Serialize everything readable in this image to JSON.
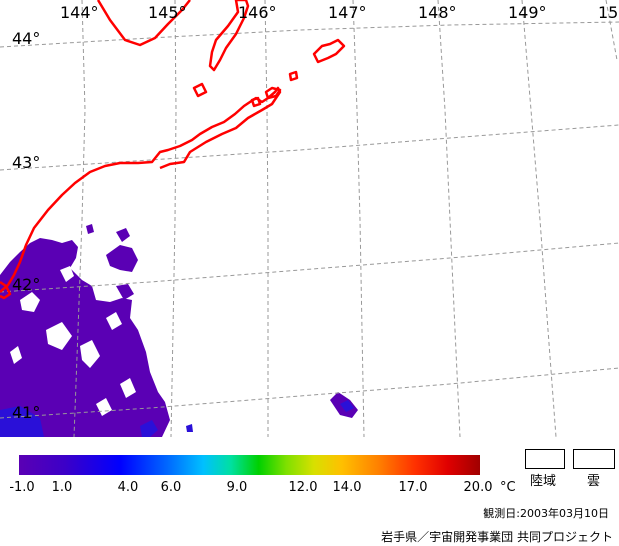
{
  "map": {
    "lon_labels": [
      "144°",
      "145°",
      "146°",
      "147°",
      "148°",
      "149°",
      "15"
    ],
    "lat_labels": [
      "44°",
      "43°",
      "42°",
      "41°"
    ],
    "colors": {
      "coast": "#ff0000",
      "grid": "#999999",
      "sst_main": "#5a00b4",
      "sst_deep": "#2a10d8"
    }
  },
  "colorbar": {
    "ticks": [
      "-1.0",
      "1.0",
      "4.0",
      "6.0",
      "9.0",
      "12.0",
      "14.0",
      "17.0",
      "20.0"
    ],
    "unit": "°C",
    "range": [
      -1.0,
      20.0
    ]
  },
  "legend": {
    "land": "陸域",
    "cloud": "雲"
  },
  "observation_date": "観測日:2003年03月10日",
  "credit": "岩手県／宇宙開発事業団 共同プロジェクト"
}
